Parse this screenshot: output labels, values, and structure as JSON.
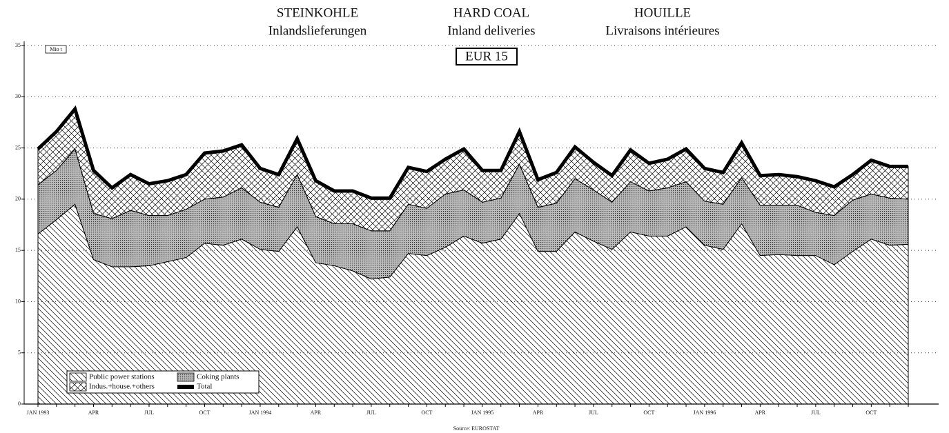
{
  "chart_data": {
    "type": "area",
    "titles": [
      {
        "main": "STEINKOHLE",
        "sub": "Inlandslieferungen"
      },
      {
        "main": "HARD COAL",
        "sub": "Inland deliveries"
      },
      {
        "main": "HOUILLE",
        "sub": "Livraisons intérieures"
      }
    ],
    "subtitle": "EUR 15",
    "unit": "Mio t",
    "source": "Source: EUROSTAT",
    "categories": [
      "JAN 1993",
      null,
      null,
      "APR",
      null,
      null,
      "JUL",
      null,
      null,
      "OCT",
      null,
      null,
      "JAN 1994",
      null,
      null,
      "APR",
      null,
      null,
      "JUL",
      null,
      null,
      "OCT",
      null,
      null,
      "JAN 1995",
      null,
      null,
      "APR",
      null,
      null,
      "JUL",
      null,
      null,
      "OCT",
      null,
      null,
      "JAN 1996",
      null,
      null,
      "APR",
      null,
      null,
      "JUL",
      null,
      null,
      "OCT",
      null,
      null
    ],
    "series": [
      {
        "name": "Public power stations",
        "color": "#000000",
        "kind": "area",
        "values": [
          16.6,
          18.0,
          19.5,
          14.1,
          13.4,
          13.4,
          13.5,
          13.9,
          14.3,
          15.7,
          15.5,
          16.1,
          15.1,
          14.9,
          17.3,
          13.8,
          13.5,
          13.0,
          12.2,
          12.4,
          14.7,
          14.5,
          15.3,
          16.4,
          15.7,
          16.1,
          18.6,
          14.9,
          14.9,
          16.8,
          15.9,
          15.1,
          16.8,
          16.4,
          16.4,
          17.3,
          15.5,
          15.1,
          17.6,
          14.5,
          14.6,
          14.5,
          14.5,
          13.6,
          14.9,
          16.1,
          15.5,
          15.6
        ]
      },
      {
        "name": "Coking plants",
        "color": "#000000",
        "kind": "area",
        "values": [
          4.8,
          4.8,
          5.4,
          4.5,
          4.7,
          5.5,
          4.9,
          4.5,
          4.7,
          4.3,
          4.7,
          5.0,
          4.6,
          4.3,
          5.1,
          4.5,
          4.1,
          4.6,
          4.7,
          4.5,
          4.8,
          4.6,
          5.2,
          4.5,
          4.0,
          4.0,
          4.8,
          4.3,
          4.7,
          5.2,
          5.0,
          4.6,
          4.9,
          4.4,
          4.7,
          4.4,
          4.3,
          4.4,
          4.5,
          4.9,
          4.8,
          4.9,
          4.2,
          4.8,
          5.0,
          4.4,
          4.6,
          4.4
        ]
      },
      {
        "name": "Indus.+house.+others",
        "color": "#000000",
        "kind": "area",
        "values": [
          3.5,
          3.8,
          3.9,
          4.2,
          3.0,
          3.5,
          3.1,
          3.4,
          3.4,
          4.5,
          4.5,
          4.2,
          3.3,
          3.2,
          3.5,
          3.5,
          3.2,
          3.2,
          3.2,
          3.2,
          3.6,
          3.6,
          3.4,
          4.0,
          3.1,
          2.7,
          3.2,
          2.7,
          3.0,
          3.1,
          2.7,
          2.6,
          3.1,
          2.7,
          2.8,
          3.2,
          3.2,
          3.1,
          3.4,
          2.9,
          3.0,
          2.8,
          3.1,
          2.8,
          2.5,
          3.3,
          3.1,
          3.2
        ]
      },
      {
        "name": "Total",
        "color": "#000000",
        "kind": "line",
        "values": [
          24.9,
          26.6,
          28.8,
          22.8,
          21.1,
          22.4,
          21.5,
          21.8,
          22.4,
          24.5,
          24.7,
          25.3,
          23.0,
          22.4,
          25.9,
          21.8,
          20.8,
          20.8,
          20.1,
          20.1,
          23.1,
          22.7,
          23.9,
          24.9,
          22.8,
          22.8,
          26.6,
          21.9,
          22.6,
          25.1,
          23.6,
          22.3,
          24.8,
          23.5,
          23.9,
          24.9,
          23.0,
          22.6,
          25.5,
          22.3,
          22.4,
          22.2,
          21.8,
          21.2,
          22.4,
          23.8,
          23.2,
          23.2
        ]
      }
    ],
    "ylim": [
      0,
      35
    ],
    "yticks": [
      0,
      5,
      10,
      15,
      20,
      25,
      30,
      35
    ],
    "grid": true,
    "legend": "lower left"
  }
}
